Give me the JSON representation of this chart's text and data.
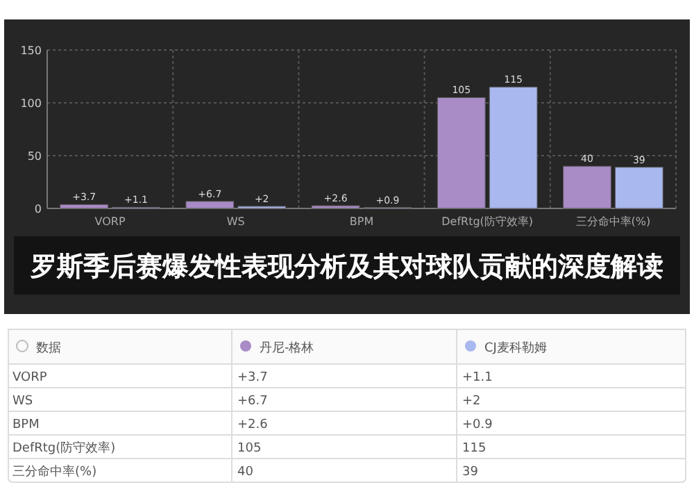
{
  "chart_data": {
    "type": "bar",
    "title": "罗斯季后赛爆发性表现分析及其对球队贡献的深度解读",
    "categories": [
      "VORP",
      "WS",
      "BPM",
      "DefRtg(防守效率)",
      "三分命中率(%)"
    ],
    "legend_title": "数据",
    "series": [
      {
        "name": "丹尼-格林",
        "color": "#a98bc6",
        "values": [
          3.7,
          6.7,
          2.6,
          105,
          40
        ],
        "value_labels": [
          "+3.7",
          "+6.7",
          "+2.6",
          "105",
          "40"
        ]
      },
      {
        "name": "CJ麦科勒姆",
        "color": "#a9b8ee",
        "values": [
          1.1,
          2,
          0.9,
          115,
          39
        ],
        "value_labels": [
          "+1.1",
          "+2",
          "+0.9",
          "115",
          "39"
        ]
      }
    ],
    "ylim": [
      0,
      150
    ],
    "yticks": [
      0,
      50,
      100,
      150
    ],
    "grid": true,
    "legend": "bottom"
  }
}
